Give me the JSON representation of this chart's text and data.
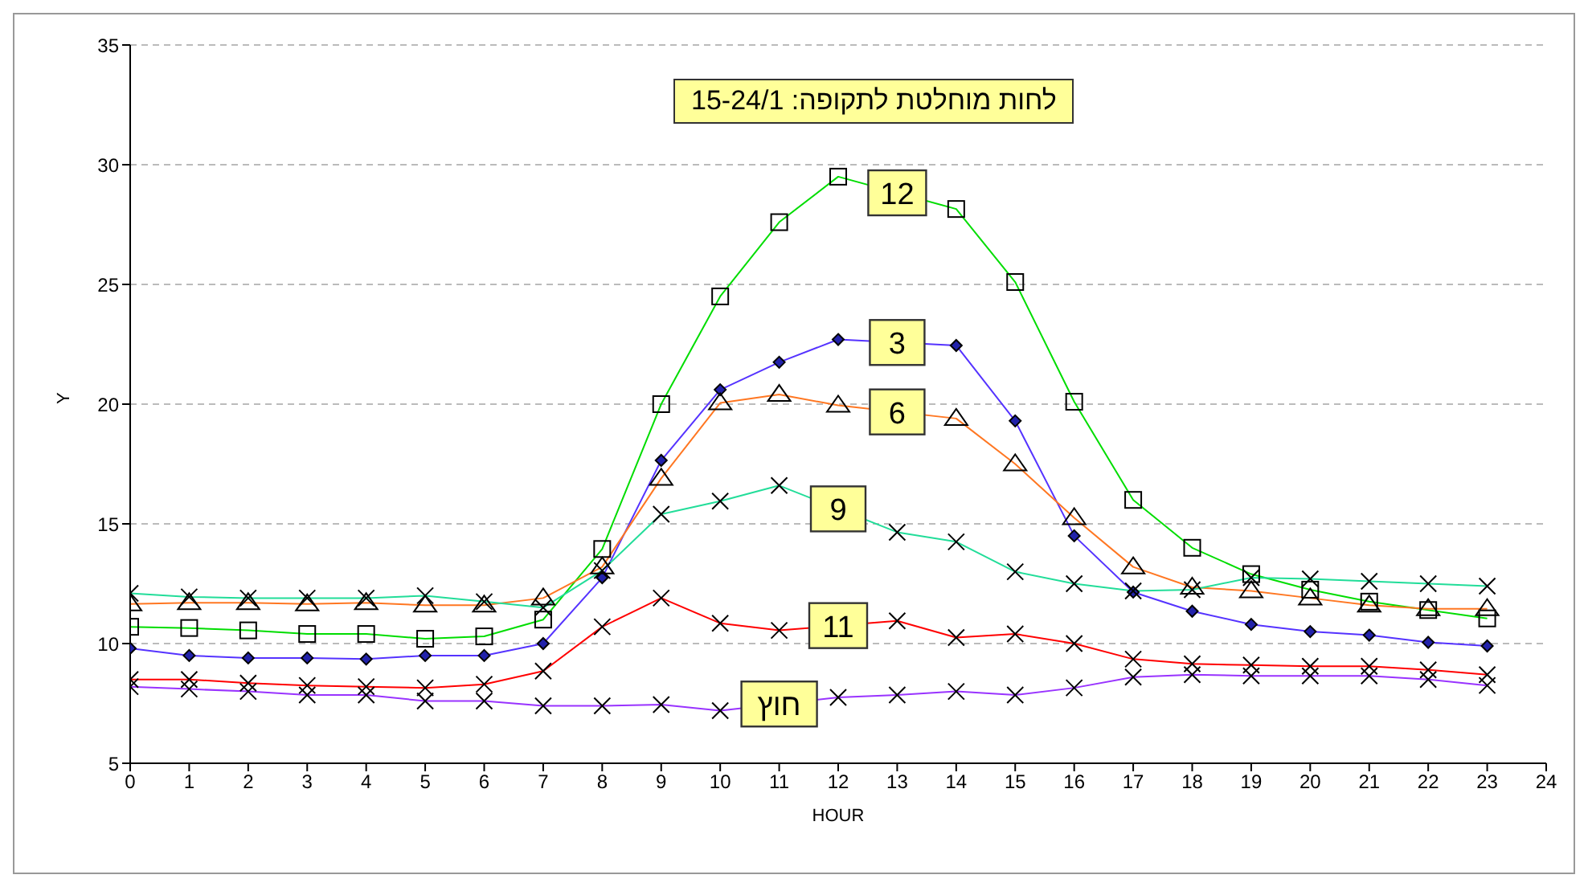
{
  "chart_data": {
    "type": "line",
    "title": "לחות מוחלטת לתקופה: 15-24/1",
    "xlabel": "HOUR",
    "ylabel": "Y",
    "x": [
      0,
      1,
      2,
      3,
      4,
      5,
      6,
      7,
      8,
      9,
      10,
      11,
      12,
      13,
      14,
      15,
      16,
      17,
      18,
      19,
      20,
      21,
      22,
      23
    ],
    "series": [
      {
        "name": "12",
        "color": "#00dd00",
        "marker": "square",
        "values": [
          10.7,
          10.65,
          10.55,
          10.4,
          10.4,
          10.2,
          10.3,
          11.0,
          13.95,
          20.0,
          24.5,
          27.6,
          29.5,
          null,
          28.15,
          25.1,
          20.1,
          16.0,
          14.0,
          12.9,
          12.25,
          11.75,
          11.4,
          11.05
        ]
      },
      {
        "name": "3",
        "color": "#5533ff",
        "marker": "diamond",
        "values": [
          9.8,
          9.5,
          9.4,
          9.4,
          9.35,
          9.5,
          9.5,
          10.0,
          12.75,
          17.65,
          20.6,
          21.75,
          22.7,
          null,
          22.45,
          19.3,
          14.5,
          12.15,
          11.35,
          10.8,
          10.5,
          10.35,
          10.05,
          9.9
        ]
      },
      {
        "name": "6",
        "color": "#ff7722",
        "marker": "triangle",
        "values": [
          11.65,
          11.7,
          11.7,
          11.65,
          11.7,
          11.6,
          11.6,
          11.9,
          13.2,
          16.9,
          20.05,
          20.4,
          19.95,
          null,
          19.4,
          17.5,
          15.25,
          13.2,
          12.35,
          12.2,
          11.9,
          11.6,
          11.45,
          11.45
        ]
      },
      {
        "name": "9",
        "color": "#22dd99",
        "marker": "cross",
        "values": [
          12.1,
          11.95,
          11.9,
          11.9,
          11.9,
          12.0,
          11.75,
          11.5,
          13.05,
          15.4,
          15.95,
          16.6,
          null,
          14.65,
          14.25,
          13.0,
          12.5,
          12.2,
          12.25,
          12.75,
          12.7,
          12.6,
          12.5,
          12.4
        ]
      },
      {
        "name": "11",
        "color": "#ff0000",
        "marker": "cross",
        "values": [
          8.5,
          8.5,
          8.35,
          8.25,
          8.2,
          8.15,
          8.3,
          8.85,
          10.7,
          11.9,
          10.85,
          10.55,
          null,
          10.95,
          10.25,
          10.4,
          10.0,
          9.35,
          9.15,
          9.1,
          9.05,
          9.05,
          8.9,
          8.7
        ]
      },
      {
        "name": "חוץ",
        "color": "#9933ff",
        "marker": "cross",
        "values": [
          8.2,
          8.1,
          8.0,
          7.85,
          7.85,
          7.6,
          7.6,
          7.4,
          7.4,
          7.45,
          7.2,
          null,
          7.75,
          7.85,
          8.0,
          7.85,
          8.15,
          8.6,
          8.7,
          8.65,
          8.65,
          8.65,
          8.5,
          8.25
        ]
      }
    ],
    "xlim": [
      0,
      24
    ],
    "xticks": [
      0,
      1,
      2,
      3,
      4,
      5,
      6,
      7,
      8,
      9,
      10,
      11,
      12,
      13,
      14,
      15,
      16,
      17,
      18,
      19,
      20,
      21,
      22,
      23,
      24
    ],
    "ylim": [
      5,
      35
    ],
    "yticks": [
      5,
      10,
      15,
      20,
      25,
      30,
      35
    ],
    "grid": "y"
  }
}
